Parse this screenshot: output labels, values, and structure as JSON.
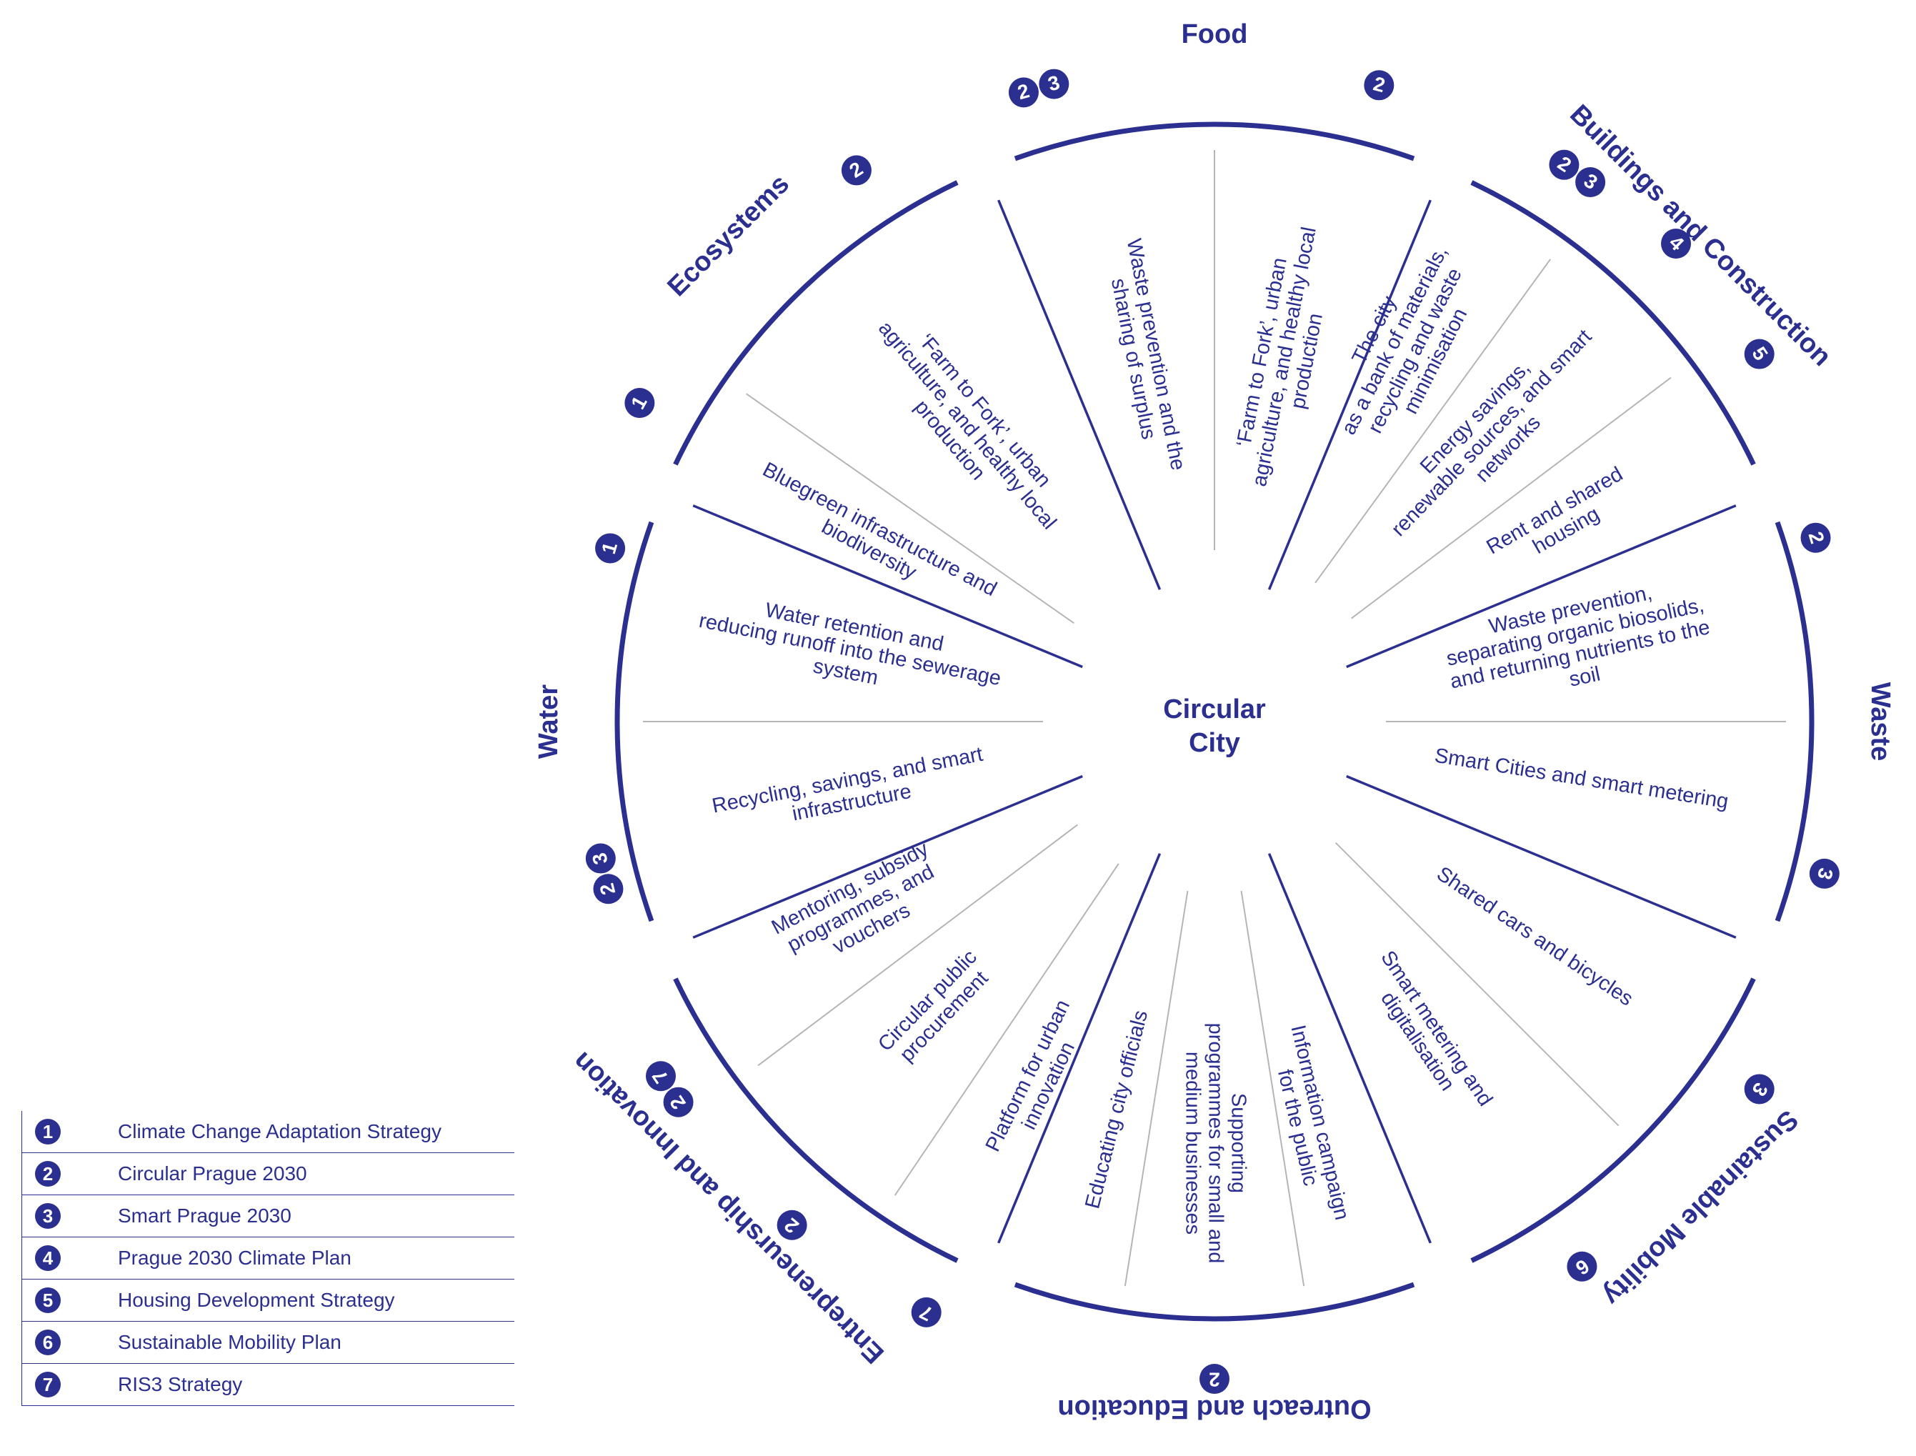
{
  "center": {
    "line1": "Circular",
    "line2": "City"
  },
  "colors": {
    "accent": "#2b2f8f",
    "divider": "#b5b5b5"
  },
  "sectors": [
    {
      "name": "Food",
      "badges": [
        {
          "nums": [
            "2",
            "3"
          ]
        },
        {
          "nums": [
            "2"
          ]
        }
      ],
      "items": [
        [
          "Waste prevention and the",
          "sharing of surplus"
        ],
        [
          "‘Farm to Fork’, urban",
          "agriculture, and healthy local",
          "production"
        ]
      ]
    },
    {
      "name": "Buildings and Construction",
      "badges": [
        {
          "nums": [
            "2",
            "3"
          ]
        },
        {
          "nums": [
            "4"
          ]
        },
        {
          "nums": [
            "5"
          ]
        }
      ],
      "items": [
        [
          "The city",
          "as a bank of materials,",
          "recycling and waste",
          "minimisation"
        ],
        [
          "Energy savings,",
          "renewable sources, and smart",
          "networks"
        ],
        [
          "Rent and shared",
          "housing"
        ]
      ]
    },
    {
      "name": "Waste",
      "badges": [
        {
          "nums": [
            "2"
          ]
        },
        {
          "nums": [
            "3"
          ]
        }
      ],
      "items": [
        [
          "Waste prevention,",
          "separating organic biosolids,",
          "and returning nutrients to the",
          "soil"
        ],
        [
          "Smart Cities and smart metering"
        ]
      ]
    },
    {
      "name": "Sustainable Mobility",
      "badges": [
        {
          "nums": [
            "3"
          ]
        },
        {
          "nums": [
            "6"
          ]
        }
      ],
      "items": [
        [
          "Shared cars and bicycles"
        ],
        [
          "Smart metering and",
          "digitalisation"
        ]
      ]
    },
    {
      "name": "Outreach and Education",
      "badges": [
        {
          "nums": [
            "2"
          ]
        }
      ],
      "items": [
        [
          "Information campaign",
          "for the public"
        ],
        [
          "Supporting",
          "programmes for small and",
          "medium businesses"
        ],
        [
          "Educating city officials"
        ]
      ]
    },
    {
      "name": "Entrepreneurship and Innovation",
      "badges": [
        {
          "nums": [
            "7"
          ]
        },
        {
          "nums": [
            "2"
          ]
        },
        {
          "nums": [
            "2",
            "7"
          ]
        }
      ],
      "items": [
        [
          "Platform for urban",
          "innovation"
        ],
        [
          "Circular public",
          "procurement"
        ],
        [
          "Mentoring, subsidy",
          "programmes, and",
          "vouchers"
        ]
      ]
    },
    {
      "name": "Water",
      "badges": [
        {
          "nums": [
            "2",
            "3"
          ]
        },
        {
          "nums": [
            "1"
          ]
        }
      ],
      "items": [
        [
          "Recycling, savings, and smart",
          "infrastructure"
        ],
        [
          "Water retention and",
          "reducing runoff into the sewerage",
          "system"
        ]
      ]
    },
    {
      "name": "Ecosystems",
      "badges": [
        {
          "nums": [
            "1"
          ]
        },
        {
          "nums": [
            "2"
          ]
        }
      ],
      "items": [
        [
          "Bluegreen infrastructure and",
          "biodiversity"
        ],
        [
          "‘Farm to Fork’, urban",
          "agriculture, and healthy local",
          "production"
        ]
      ]
    }
  ],
  "legend": [
    {
      "num": "1",
      "label": "Climate Change Adaptation Strategy"
    },
    {
      "num": "2",
      "label": "Circular Prague 2030"
    },
    {
      "num": "3",
      "label": "Smart Prague 2030"
    },
    {
      "num": "4",
      "label": "Prague 2030 Climate Plan"
    },
    {
      "num": "5",
      "label": "Housing Development Strategy"
    },
    {
      "num": "6",
      "label": "Sustainable Mobility Plan"
    },
    {
      "num": "7",
      "label": "RIS3 Strategy"
    }
  ]
}
